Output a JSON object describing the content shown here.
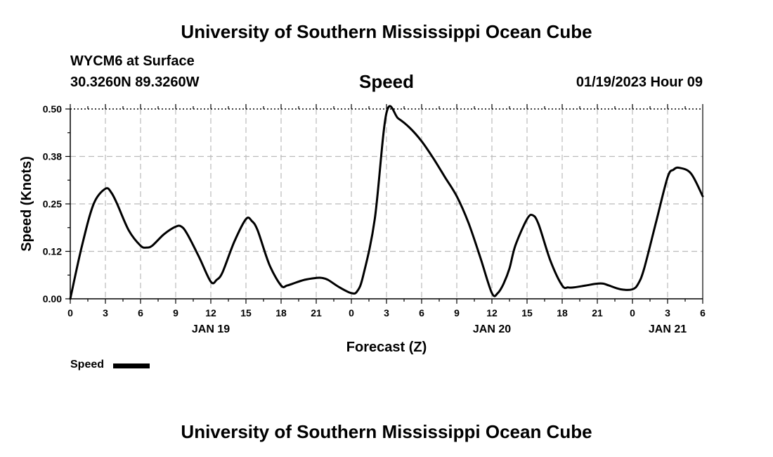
{
  "page": {
    "title": "University of Southern Mississippi Ocean Cube",
    "station": "WYCM6 at Surface",
    "coords": "30.3260N  89.3260W",
    "variable": "Speed",
    "datetime": "01/19/2023 Hour 09",
    "footer_title": "University of Southern Mississippi Ocean Cube"
  },
  "legend": {
    "label": "Speed"
  },
  "chart_data": {
    "type": "line",
    "title": "Speed",
    "xlabel": "Forecast (Z)",
    "ylabel": "Speed (Knots)",
    "ylim": [
      0,
      0.5
    ],
    "xlim": [
      0,
      54
    ],
    "grid": true,
    "legend_position": "bottom-left",
    "y_ticks": [
      {
        "value": 0.0,
        "label": "0.00"
      },
      {
        "value": 0.125,
        "label": "0.12"
      },
      {
        "value": 0.25,
        "label": "0.25"
      },
      {
        "value": 0.375,
        "label": "0.38"
      },
      {
        "value": 0.5,
        "label": "0.50"
      }
    ],
    "x_ticks": [
      {
        "hours": 0,
        "label": "0"
      },
      {
        "hours": 3,
        "label": "3"
      },
      {
        "hours": 6,
        "label": "6"
      },
      {
        "hours": 9,
        "label": "9"
      },
      {
        "hours": 12,
        "label": "12"
      },
      {
        "hours": 15,
        "label": "15"
      },
      {
        "hours": 18,
        "label": "18"
      },
      {
        "hours": 21,
        "label": "21"
      },
      {
        "hours": 24,
        "label": "0"
      },
      {
        "hours": 27,
        "label": "3"
      },
      {
        "hours": 30,
        "label": "6"
      },
      {
        "hours": 33,
        "label": "9"
      },
      {
        "hours": 36,
        "label": "12"
      },
      {
        "hours": 39,
        "label": "15"
      },
      {
        "hours": 42,
        "label": "18"
      },
      {
        "hours": 45,
        "label": "21"
      },
      {
        "hours": 48,
        "label": "0"
      },
      {
        "hours": 51,
        "label": "3"
      },
      {
        "hours": 54,
        "label": "6"
      }
    ],
    "date_labels": [
      {
        "hours": 12,
        "label": "JAN 19"
      },
      {
        "hours": 36,
        "label": "JAN 20"
      },
      {
        "hours": 51,
        "label": "JAN 21"
      }
    ],
    "series": [
      {
        "name": "Speed",
        "color": "#000000",
        "x": [
          0,
          1,
          2,
          3,
          3.5,
          4,
          5,
          6,
          6.5,
          7,
          8,
          9,
          9.5,
          10,
          11,
          12,
          12.5,
          13,
          14,
          15,
          15.5,
          16,
          17,
          18,
          18.5,
          19,
          20,
          21,
          21.5,
          22,
          23,
          24,
          24.5,
          25,
          26,
          27,
          28,
          29,
          30,
          31,
          32,
          33,
          34,
          35,
          36,
          36.5,
          37,
          37.5,
          38,
          39,
          39.5,
          40,
          41,
          42,
          42.5,
          43,
          44,
          45,
          45.5,
          46,
          47,
          48,
          48.5,
          49,
          50,
          51,
          51.5,
          52,
          53,
          54
        ],
        "y": [
          0.0,
          0.14,
          0.25,
          0.29,
          0.28,
          0.25,
          0.18,
          0.14,
          0.135,
          0.14,
          0.17,
          0.19,
          0.19,
          0.17,
          0.11,
          0.045,
          0.05,
          0.07,
          0.15,
          0.21,
          0.205,
          0.18,
          0.09,
          0.035,
          0.035,
          0.04,
          0.05,
          0.055,
          0.055,
          0.05,
          0.03,
          0.015,
          0.02,
          0.06,
          0.21,
          0.49,
          0.475,
          0.45,
          0.415,
          0.37,
          0.32,
          0.27,
          0.2,
          0.11,
          0.015,
          0.015,
          0.04,
          0.08,
          0.14,
          0.21,
          0.22,
          0.195,
          0.1,
          0.035,
          0.03,
          0.03,
          0.035,
          0.04,
          0.04,
          0.035,
          0.025,
          0.025,
          0.04,
          0.08,
          0.2,
          0.32,
          0.34,
          0.345,
          0.33,
          0.27
        ]
      }
    ]
  }
}
